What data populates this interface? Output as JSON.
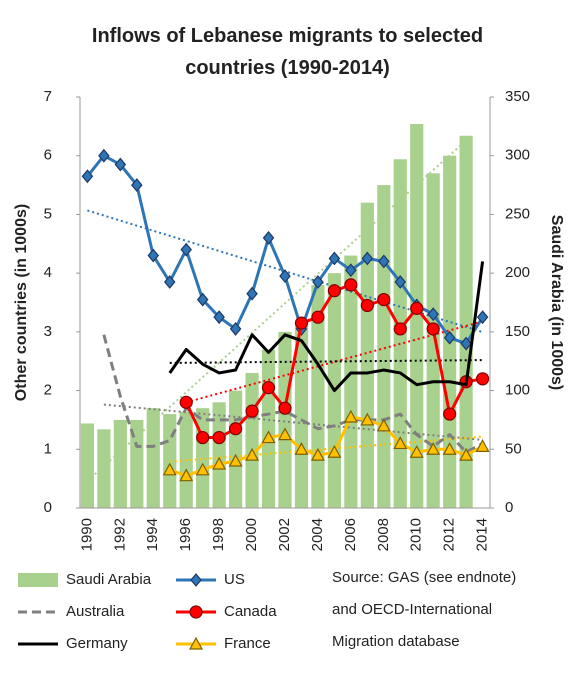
{
  "chart_data": {
    "type": "bar_line",
    "title": "Inflows of Lebanese migrants to selected countries (1990-2014)",
    "y_label": "Other countries (in 1000s)",
    "y2_label": "Saudi Arabia (in 1000s)",
    "categories": [
      "1990",
      null,
      "1992",
      null,
      "1994",
      null,
      "1996",
      null,
      "1998",
      null,
      "2000",
      null,
      "2002",
      null,
      "2004",
      null,
      "2006",
      null,
      "2008",
      null,
      "2010",
      null,
      "2012",
      null,
      "2014"
    ],
    "ylim": [
      0,
      7
    ],
    "yticks": [
      0,
      1,
      2,
      3,
      4,
      5,
      6,
      7
    ],
    "y2lim": [
      0,
      350
    ],
    "y2ticks": [
      0,
      50,
      100,
      150,
      200,
      250,
      300,
      350
    ],
    "trendlines": true,
    "series": [
      {
        "name": "Saudi Arabia",
        "kind": "bar",
        "axis": "y2",
        "color": "#a9d18e",
        "values": [
          72,
          67,
          75,
          75,
          85,
          80,
          82,
          85,
          90,
          100,
          115,
          135,
          150,
          155,
          190,
          200,
          215,
          260,
          275,
          297,
          327,
          285,
          300,
          317,
          null
        ]
      },
      {
        "name": "US",
        "kind": "line",
        "color": "#2e75b6",
        "marker": "diamond",
        "values": [
          5.65,
          6.0,
          5.85,
          5.5,
          4.3,
          3.85,
          4.4,
          3.55,
          3.25,
          3.05,
          3.65,
          4.6,
          3.95,
          3.05,
          3.85,
          4.25,
          4.05,
          4.25,
          4.2,
          3.85,
          3.45,
          3.3,
          2.9,
          2.8,
          3.25
        ]
      },
      {
        "name": "Australia",
        "kind": "line",
        "color": "#7f7f7f",
        "dash": true,
        "values": [
          null,
          2.95,
          1.9,
          1.05,
          1.05,
          1.15,
          1.7,
          1.5,
          1.5,
          1.5,
          1.55,
          1.6,
          1.65,
          1.5,
          1.35,
          1.4,
          1.5,
          1.5,
          1.5,
          1.6,
          1.25,
          1.05,
          1.25,
          0.95,
          1.1
        ]
      },
      {
        "name": "Canada",
        "kind": "line",
        "color": "#ff0000",
        "marker": "circle",
        "values": [
          null,
          null,
          null,
          null,
          null,
          null,
          1.8,
          1.2,
          1.2,
          1.35,
          1.65,
          2.05,
          1.7,
          3.15,
          3.25,
          3.7,
          3.8,
          3.45,
          3.55,
          3.05,
          3.4,
          3.05,
          1.6,
          2.15,
          2.2
        ]
      },
      {
        "name": "Germany",
        "kind": "line",
        "color": "#000000",
        "values": [
          null,
          null,
          null,
          null,
          null,
          2.3,
          2.7,
          2.45,
          2.3,
          2.35,
          2.95,
          2.65,
          2.95,
          2.85,
          2.45,
          2.0,
          2.3,
          2.3,
          2.35,
          2.3,
          2.1,
          2.15,
          2.15,
          2.1,
          4.2
        ]
      },
      {
        "name": "France",
        "kind": "line",
        "color": "#ffc000",
        "marker": "triangle",
        "values": [
          null,
          null,
          null,
          null,
          null,
          0.65,
          0.55,
          0.65,
          0.75,
          0.8,
          0.9,
          1.2,
          1.25,
          1.0,
          0.9,
          0.95,
          1.55,
          1.5,
          1.4,
          1.1,
          0.95,
          1.0,
          1.0,
          0.9,
          1.05
        ]
      }
    ],
    "source": [
      "Source: GAS (see endnote)",
      "and OECD-International",
      "Migration database"
    ]
  }
}
